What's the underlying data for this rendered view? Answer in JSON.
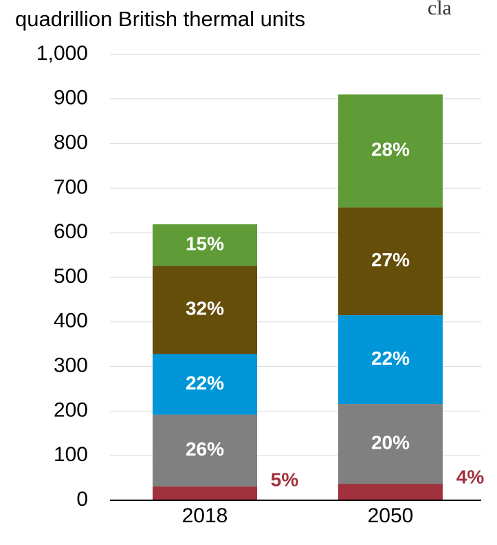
{
  "chart_data": {
    "type": "stacked_bar",
    "title": "quadrillion British thermal units",
    "corner_text": "cla",
    "categories": [
      "2018",
      "2050"
    ],
    "series": [
      {
        "color": "#a0313d",
        "values": [
          31,
          37
        ],
        "share_labels": [
          "5%",
          "4%"
        ],
        "label_color": "#a0313d",
        "label_outside": true
      },
      {
        "color": "#808080",
        "values": [
          161,
          179
        ],
        "share_labels": [
          "26%",
          "20%"
        ],
        "label_color": "#ffffff"
      },
      {
        "color": "#0096d7",
        "values": [
          136,
          199
        ],
        "share_labels": [
          "22%",
          "22%"
        ],
        "label_color": "#ffffff"
      },
      {
        "color": "#654d0a",
        "values": [
          198,
          242
        ],
        "share_labels": [
          "32%",
          "27%"
        ],
        "label_color": "#ffffff"
      },
      {
        "color": "#5f9b37",
        "values": [
          93,
          253
        ],
        "share_labels": [
          "15%",
          "28%"
        ],
        "label_color": "#ffffff"
      }
    ],
    "ylim": [
      0,
      1000
    ],
    "yticks": [
      0,
      100,
      200,
      300,
      400,
      500,
      600,
      700,
      800,
      900,
      {
        "value": 1000,
        "label": "1,000"
      }
    ],
    "grid": true
  }
}
